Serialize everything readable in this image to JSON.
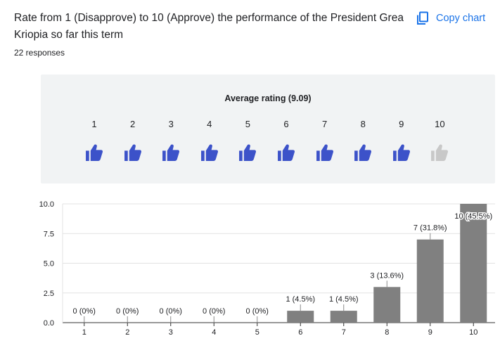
{
  "question": {
    "title": "Rate from 1 (Disapprove) to 10 (Approve) the performance of the President Grea Kriopia so far this term",
    "responses": "22 responses"
  },
  "toolbar": {
    "copy_label": "Copy chart",
    "copy_icon": "copy-icon"
  },
  "rating": {
    "average_label": "Average rating (9.09)",
    "scale": [
      "1",
      "2",
      "3",
      "4",
      "5",
      "6",
      "7",
      "8",
      "9",
      "10"
    ],
    "filled_count": 9,
    "icon": "thumbs-up-icon",
    "filled_color": "#3c52c9",
    "empty_color": "#c8c8c8"
  },
  "colors": {
    "bar": "#808080",
    "accent": "#1a73e8",
    "panel": "#f1f3f4"
  },
  "chart_data": {
    "type": "bar",
    "categories": [
      "1",
      "2",
      "3",
      "4",
      "5",
      "6",
      "7",
      "8",
      "9",
      "10"
    ],
    "values": [
      0,
      0,
      0,
      0,
      0,
      1,
      1,
      3,
      7,
      10
    ],
    "labels": [
      "0 (0%)",
      "0 (0%)",
      "0 (0%)",
      "0 (0%)",
      "0 (0%)",
      "1 (4.5%)",
      "1 (4.5%)",
      "3 (13.6%)",
      "7 (31.8%)",
      "10 (45.5%)"
    ],
    "yticks": [
      "0.0",
      "2.5",
      "5.0",
      "7.5",
      "10.0"
    ],
    "ylim": [
      0,
      10
    ],
    "grid": true,
    "legend": "none"
  }
}
